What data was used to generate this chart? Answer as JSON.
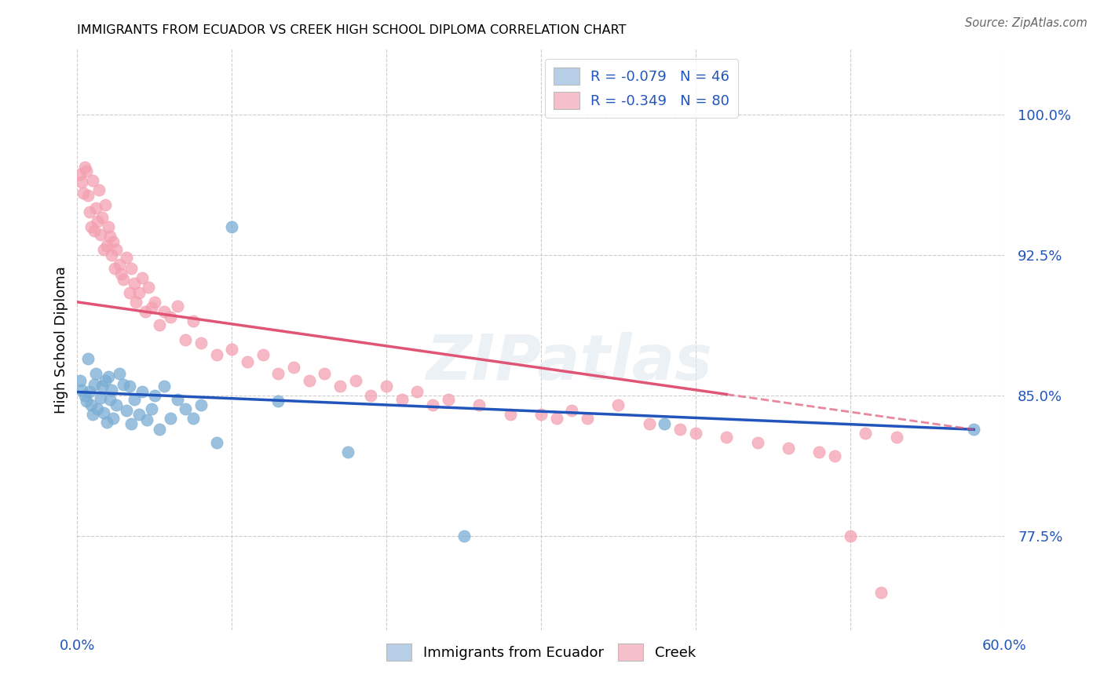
{
  "title": "IMMIGRANTS FROM ECUADOR VS CREEK HIGH SCHOOL DIPLOMA CORRELATION CHART",
  "source": "Source: ZipAtlas.com",
  "ylabel": "High School Diploma",
  "yticks": [
    0.775,
    0.85,
    0.925,
    1.0
  ],
  "ytick_labels": [
    "77.5%",
    "85.0%",
    "92.5%",
    "100.0%"
  ],
  "xlim": [
    0.0,
    0.6
  ],
  "ylim": [
    0.725,
    1.035
  ],
  "blue_color": "#7aadd4",
  "pink_color": "#f4a0b0",
  "blue_line_color": "#2255bb",
  "pink_line_color": "#e05575",
  "legend_blue_label": "R = -0.079   N = 46",
  "legend_pink_label": "R = -0.349   N = 80",
  "legend_blue_patch_color": "#b8cfe8",
  "legend_pink_patch_color": "#f5c0cb",
  "blue_R": -0.079,
  "pink_R": -0.349,
  "blue_scatter_x": [
    0.002,
    0.003,
    0.005,
    0.006,
    0.007,
    0.008,
    0.009,
    0.01,
    0.011,
    0.012,
    0.013,
    0.015,
    0.016,
    0.017,
    0.018,
    0.019,
    0.02,
    0.021,
    0.022,
    0.023,
    0.025,
    0.027,
    0.03,
    0.032,
    0.034,
    0.035,
    0.037,
    0.04,
    0.042,
    0.045,
    0.048,
    0.05,
    0.053,
    0.056,
    0.06,
    0.065,
    0.07,
    0.075,
    0.08,
    0.09,
    0.1,
    0.13,
    0.175,
    0.25,
    0.38,
    0.58
  ],
  "blue_scatter_y": [
    0.858,
    0.853,
    0.85,
    0.847,
    0.87,
    0.852,
    0.845,
    0.84,
    0.856,
    0.862,
    0.843,
    0.849,
    0.855,
    0.841,
    0.858,
    0.836,
    0.86,
    0.848,
    0.853,
    0.838,
    0.845,
    0.862,
    0.856,
    0.842,
    0.855,
    0.835,
    0.848,
    0.84,
    0.852,
    0.837,
    0.843,
    0.85,
    0.832,
    0.855,
    0.838,
    0.848,
    0.843,
    0.838,
    0.845,
    0.825,
    0.94,
    0.847,
    0.82,
    0.775,
    0.835,
    0.832
  ],
  "pink_scatter_x": [
    0.002,
    0.003,
    0.004,
    0.005,
    0.006,
    0.007,
    0.008,
    0.009,
    0.01,
    0.011,
    0.012,
    0.013,
    0.014,
    0.015,
    0.016,
    0.017,
    0.018,
    0.019,
    0.02,
    0.021,
    0.022,
    0.023,
    0.024,
    0.025,
    0.027,
    0.028,
    0.03,
    0.032,
    0.034,
    0.035,
    0.037,
    0.038,
    0.04,
    0.042,
    0.044,
    0.046,
    0.048,
    0.05,
    0.053,
    0.056,
    0.06,
    0.065,
    0.07,
    0.075,
    0.08,
    0.09,
    0.1,
    0.11,
    0.12,
    0.13,
    0.14,
    0.15,
    0.16,
    0.17,
    0.18,
    0.19,
    0.2,
    0.21,
    0.22,
    0.23,
    0.24,
    0.26,
    0.28,
    0.3,
    0.31,
    0.32,
    0.33,
    0.35,
    0.37,
    0.39,
    0.4,
    0.42,
    0.44,
    0.46,
    0.48,
    0.49,
    0.5,
    0.51,
    0.52,
    0.53
  ],
  "pink_scatter_y": [
    0.968,
    0.964,
    0.958,
    0.972,
    0.97,
    0.957,
    0.948,
    0.94,
    0.965,
    0.938,
    0.95,
    0.943,
    0.96,
    0.936,
    0.945,
    0.928,
    0.952,
    0.93,
    0.94,
    0.935,
    0.925,
    0.932,
    0.918,
    0.928,
    0.92,
    0.915,
    0.912,
    0.924,
    0.905,
    0.918,
    0.91,
    0.9,
    0.905,
    0.913,
    0.895,
    0.908,
    0.897,
    0.9,
    0.888,
    0.895,
    0.892,
    0.898,
    0.88,
    0.89,
    0.878,
    0.872,
    0.875,
    0.868,
    0.872,
    0.862,
    0.865,
    0.858,
    0.862,
    0.855,
    0.858,
    0.85,
    0.855,
    0.848,
    0.852,
    0.845,
    0.848,
    0.845,
    0.84,
    0.84,
    0.838,
    0.842,
    0.838,
    0.845,
    0.835,
    0.832,
    0.83,
    0.828,
    0.825,
    0.822,
    0.82,
    0.818,
    0.775,
    0.83,
    0.745,
    0.828
  ],
  "watermark_text": "ZIPatlas",
  "dot_size": 120
}
